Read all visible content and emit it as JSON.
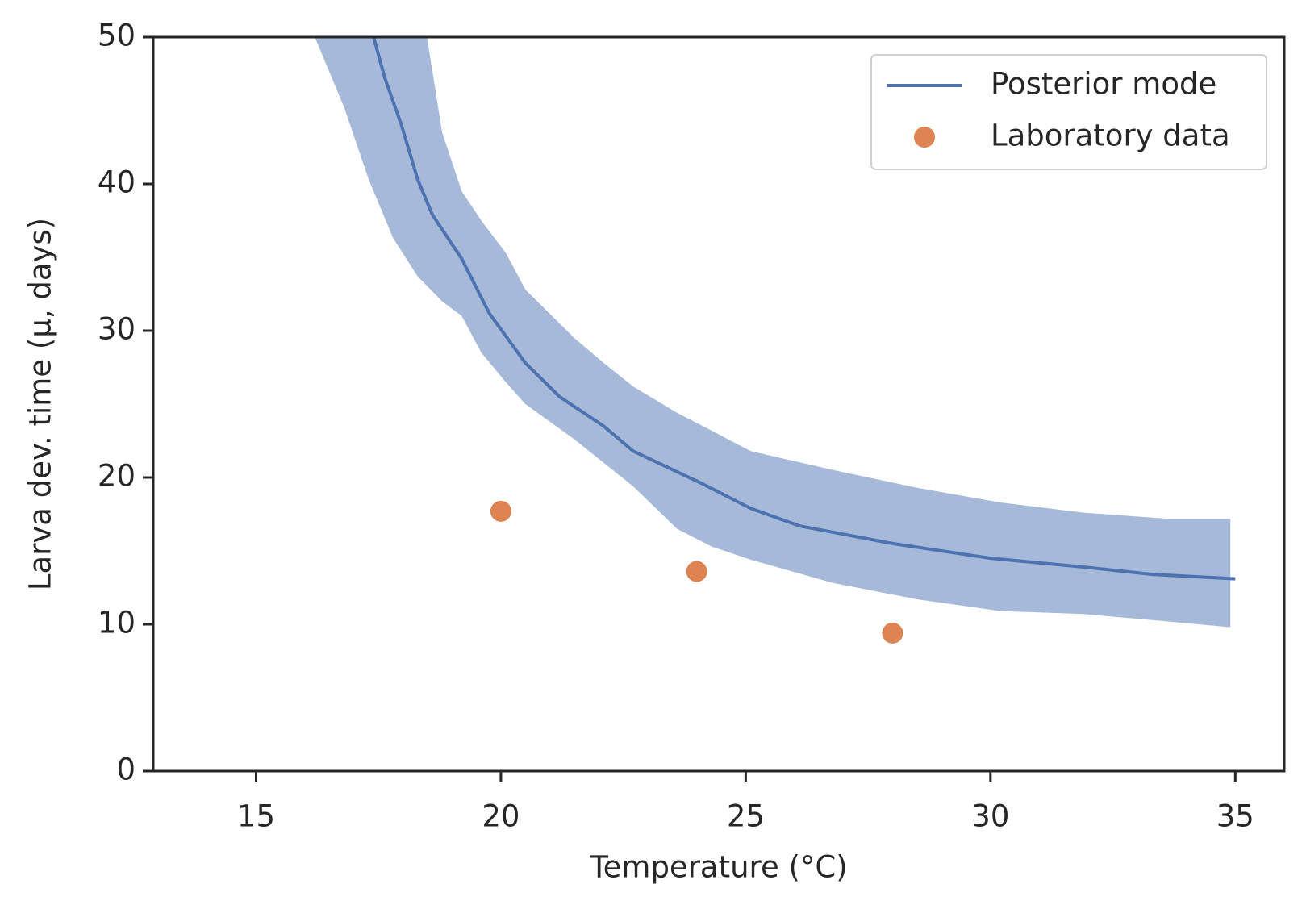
{
  "chart_data": {
    "type": "line",
    "xlabel": "Temperature (°C)",
    "ylabel": "Larva dev. time (μ, days)",
    "xlim": [
      12.9,
      36
    ],
    "xticks": [
      15,
      20,
      25,
      30,
      35
    ],
    "ylim": [
      0,
      50
    ],
    "yticks": [
      0,
      10,
      20,
      30,
      40,
      50
    ],
    "grid": false,
    "legend": "upper right",
    "series": [
      {
        "name": "Posterior mode",
        "color": "#4c72b0",
        "x": [
          17.4,
          17.63,
          17.97,
          18.3,
          18.6,
          19.2,
          19.76,
          20.5,
          21.2,
          22.1,
          22.7,
          24.1,
          25.1,
          26.1,
          28,
          30,
          31.9,
          33.3,
          35
        ],
        "values": [
          50,
          47.2,
          44,
          40.3,
          37.9,
          34.9,
          31.2,
          27.8,
          25.5,
          23.5,
          21.8,
          19.6,
          17.9,
          16.7,
          15.5,
          14.5,
          13.9,
          13.4,
          13.1
        ]
      }
    ],
    "band": {
      "color": "#a6b9d9",
      "x": [
        16.2,
        16.8,
        17.3,
        17.8,
        18.3,
        18.8,
        19.2,
        19.6,
        20.1,
        20.5,
        21.5,
        22.1,
        22.7,
        23.6,
        24.3,
        25.1,
        26.8,
        28.5,
        30.2,
        31.9,
        33.6,
        34.9
      ],
      "lower": [
        50,
        45.2,
        40.3,
        36.3,
        33.7,
        32,
        31,
        28.5,
        26.5,
        25,
        22.6,
        21,
        19.4,
        16.5,
        15.3,
        14.4,
        12.8,
        11.7,
        10.9,
        10.7,
        10.2,
        9.8
      ],
      "upper": [
        80,
        72,
        66,
        60,
        54,
        43.5,
        39.5,
        37.5,
        35.3,
        32.8,
        29.5,
        27.8,
        26.2,
        24.4,
        23.2,
        21.8,
        20.5,
        19.3,
        18.3,
        17.6,
        17.2,
        17.2
      ]
    },
    "points": {
      "name": "Laboratory data",
      "color": "#dd8452",
      "x": [
        20,
        24,
        28
      ],
      "values": [
        17.7,
        13.6,
        9.4
      ]
    }
  }
}
